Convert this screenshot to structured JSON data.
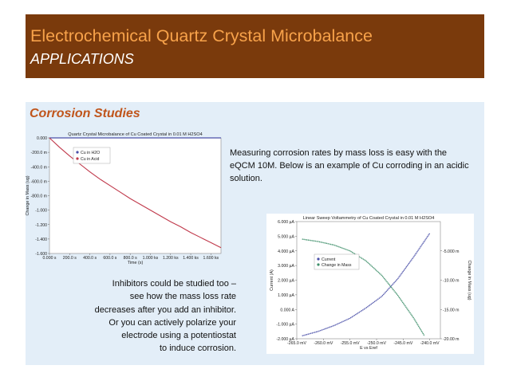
{
  "header": {
    "title": "Electrochemical Quartz Crystal Microbalance",
    "subtitle": "APPLICATIONS"
  },
  "section": {
    "title": "Corrosion Studies",
    "description": "Measuring corrosion rates by mass loss is easy with the eQCM 10M. Below is an example of Cu corroding in an acidic solution.",
    "inhibitors_lines": [
      "Inhibitors could be studied too –",
      "see how the mass loss rate",
      "decreases after you add an inhibitor.",
      "Or you can actively polarize your",
      "electrode using a potentiostat",
      "to induce corrosion."
    ]
  },
  "colors": {
    "header_bg": "#7a3a0c",
    "title_orange": "#f7a24a",
    "section_orange": "#c0551c",
    "panel_bg": "#e3eef8",
    "series_blue": "#4a4fa8",
    "series_red": "#c0394b",
    "series_green": "#3e8f6a"
  },
  "chart_data": [
    {
      "type": "line",
      "title": "Quartz Crystal Microbalance of Cu Coated Crystal in 0.01 M H2SO4",
      "xlabel": "Time (s)",
      "ylabel": "Change in Mass (ug)",
      "xlim": [
        0,
        1700
      ],
      "ylim": [
        -1.6,
        0
      ],
      "x_ticks": [
        0,
        200,
        400,
        600,
        800,
        1000,
        1200,
        1400,
        1600
      ],
      "x_tick_labels": [
        "0.000 s",
        "200.0 s",
        "400.0 s",
        "600.0 s",
        "800.0 s",
        "1.000 ks",
        "1.200 ks",
        "1.400 ks",
        "1.600 ks"
      ],
      "y_ticks": [
        0,
        -0.2,
        -0.4,
        -0.6,
        -0.8,
        -1.0,
        -1.2,
        -1.4,
        -1.6
      ],
      "y_tick_labels": [
        "0.000",
        "-200.0 m",
        "-400.0 m",
        "-600.0 m",
        "-800.0 m",
        "-1.000",
        "-1.200",
        "-1.400",
        "-1.600"
      ],
      "legend": "top-left",
      "grid": false,
      "series": [
        {
          "name": "Cu in H2O",
          "x": [
            0,
            1700
          ],
          "values": [
            0.0,
            0.0
          ]
        },
        {
          "name": "Cu in Acid",
          "x": [
            0,
            100,
            200,
            300,
            400,
            500,
            600,
            700,
            800,
            900,
            1000,
            1100,
            1200,
            1300,
            1400,
            1500,
            1600,
            1700
          ],
          "values": [
            0,
            -0.13,
            -0.25,
            -0.36,
            -0.47,
            -0.57,
            -0.66,
            -0.75,
            -0.84,
            -0.92,
            -1.0,
            -1.08,
            -1.16,
            -1.23,
            -1.31,
            -1.38,
            -1.45,
            -1.52
          ]
        }
      ]
    },
    {
      "type": "line",
      "title": "Linear Sweep Voltammetry of Cu Coated Crystal in 0.01 M H2SO4",
      "xlabel": "E vs Eref",
      "ylabel": "Current (A)",
      "y2label": "Change in Mass (ug)",
      "xlim": [
        -265,
        -238
      ],
      "ylim": [
        -2,
        6
      ],
      "y2lim": [
        -20,
        0
      ],
      "x_ticks": [
        -265,
        -260,
        -255,
        -250,
        -245,
        -240
      ],
      "x_tick_labels": [
        "-265.0 mV",
        "-260.0 mV",
        "-255.0 mV",
        "-250.0 mV",
        "-245.0 mV",
        "-240.0 mV"
      ],
      "y_ticks": [
        6,
        5,
        4,
        3,
        2,
        1,
        0,
        -1,
        -2
      ],
      "y_tick_labels": [
        "6.000 µA",
        "5.000 µA",
        "4.000 µA",
        "3.000 µA",
        "2.000 µA",
        "1.000 µA",
        "0.000 A",
        "-1.000 µA",
        "-2.000 µA"
      ],
      "y2_ticks": [
        -5,
        -10,
        -15,
        -20
      ],
      "y2_tick_labels": [
        "-5.000 m",
        "-10.00 m",
        "-15.00 m",
        "-20.00 m"
      ],
      "legend": "center",
      "grid": false,
      "series": [
        {
          "name": "Current",
          "axis": "left",
          "x": [
            -264,
            -261,
            -258,
            -255,
            -252,
            -249,
            -246,
            -243,
            -240
          ],
          "values": [
            -1.8,
            -1.5,
            -1.1,
            -0.6,
            0.1,
            0.9,
            2.1,
            3.6,
            5.2
          ]
        },
        {
          "name": "Change in Mass",
          "axis": "right",
          "x": [
            -264,
            -261,
            -258,
            -255,
            -252,
            -249,
            -246,
            -243,
            -241
          ],
          "values": [
            -3.0,
            -3.4,
            -4.0,
            -5.0,
            -6.7,
            -9.2,
            -12.6,
            -16.5,
            -19.5
          ]
        }
      ]
    }
  ]
}
